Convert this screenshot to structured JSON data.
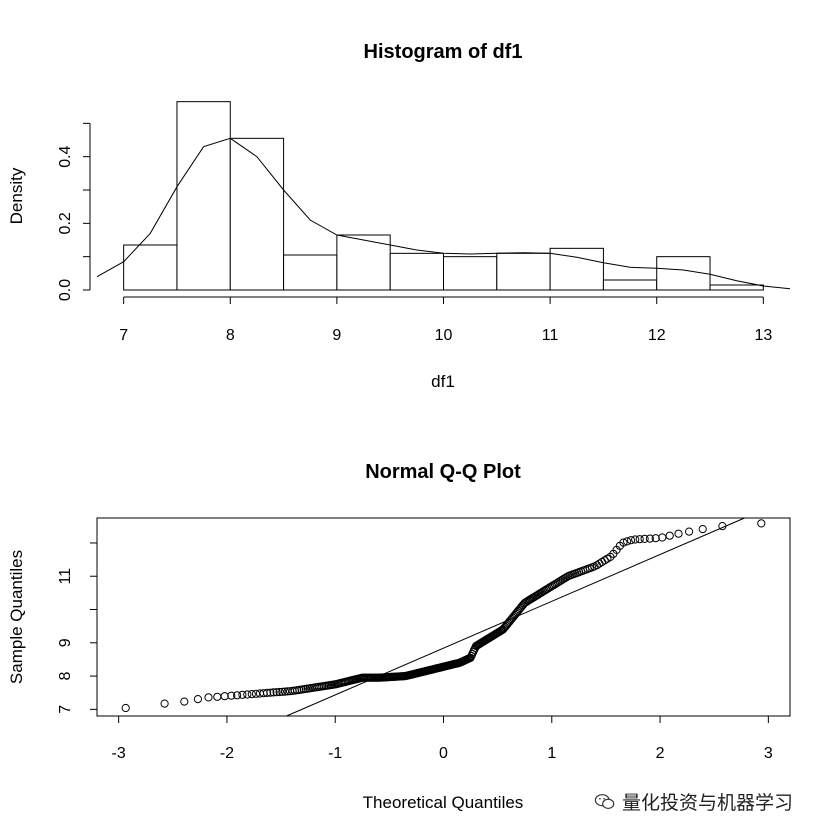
{
  "watermark": {
    "text": "量化投资与机器学习",
    "icon": "wechat-icon"
  },
  "chart_data": [
    {
      "type": "histogram",
      "title": "Histogram of df1",
      "xlabel": "df1",
      "ylabel": "Density",
      "x_ticks": [
        "7",
        "8",
        "9",
        "10",
        "11",
        "12",
        "13"
      ],
      "y_ticks": [
        "0.0",
        "0.2",
        "0.4"
      ],
      "xlim": [
        6.75,
        13.25
      ],
      "ylim": [
        0,
        0.57
      ],
      "bins": [
        {
          "x0": 7.0,
          "x1": 7.5,
          "density": 0.135
        },
        {
          "x0": 7.5,
          "x1": 8.0,
          "density": 0.565
        },
        {
          "x0": 8.0,
          "x1": 8.5,
          "density": 0.455
        },
        {
          "x0": 8.5,
          "x1": 9.0,
          "density": 0.105
        },
        {
          "x0": 9.0,
          "x1": 9.5,
          "density": 0.165
        },
        {
          "x0": 9.5,
          "x1": 10.0,
          "density": 0.11
        },
        {
          "x0": 10.0,
          "x1": 10.5,
          "density": 0.1
        },
        {
          "x0": 10.5,
          "x1": 11.0,
          "density": 0.11
        },
        {
          "x0": 11.0,
          "x1": 11.5,
          "density": 0.125
        },
        {
          "x0": 11.5,
          "x1": 12.0,
          "density": 0.03
        },
        {
          "x0": 12.0,
          "x1": 12.5,
          "density": 0.1
        },
        {
          "x0": 12.5,
          "x1": 13.0,
          "density": 0.015
        }
      ],
      "density_curve": {
        "x": [
          6.75,
          7.0,
          7.25,
          7.5,
          7.75,
          8.0,
          8.25,
          8.5,
          8.75,
          9.0,
          9.25,
          9.5,
          9.75,
          10.0,
          10.25,
          10.5,
          10.75,
          11.0,
          11.25,
          11.5,
          11.75,
          12.0,
          12.25,
          12.5,
          12.75,
          13.0,
          13.25
        ],
        "y": [
          0.04,
          0.085,
          0.17,
          0.31,
          0.43,
          0.455,
          0.4,
          0.3,
          0.21,
          0.165,
          0.15,
          0.135,
          0.12,
          0.11,
          0.108,
          0.11,
          0.112,
          0.11,
          0.098,
          0.082,
          0.068,
          0.065,
          0.06,
          0.047,
          0.028,
          0.012,
          0.004
        ]
      }
    },
    {
      "type": "scatter",
      "title": "Normal Q-Q Plot",
      "xlabel": "Theoretical Quantiles",
      "ylabel": "Sample Quantiles",
      "x_ticks": [
        "-3",
        "-2",
        "-1",
        "0",
        "1",
        "2",
        "3"
      ],
      "y_ticks": [
        "7",
        "8",
        "9",
        "11"
      ],
      "xlim": [
        -3.2,
        3.2
      ],
      "ylim": [
        6.8,
        12.75
      ],
      "n_points": 300,
      "points_curve": {
        "x": [
          -3.03,
          -2.67,
          -2.45,
          -2.2,
          -1.8,
          -1.4,
          -1.0,
          -0.75,
          -0.6,
          -0.35,
          -0.1,
          0.15,
          0.25,
          0.3,
          0.4,
          0.55,
          0.75,
          0.95,
          1.15,
          1.4,
          1.55,
          1.65,
          1.75,
          2.0,
          2.2,
          2.45,
          2.67,
          3.03
        ],
        "y": [
          7.0,
          7.15,
          7.2,
          7.35,
          7.45,
          7.55,
          7.75,
          7.95,
          7.95,
          8.0,
          8.2,
          8.4,
          8.55,
          8.9,
          9.1,
          9.4,
          10.2,
          10.6,
          11.0,
          11.3,
          11.6,
          12.0,
          12.1,
          12.15,
          12.3,
          12.45,
          12.55,
          12.6
        ]
      },
      "qq_line": {
        "x": [
          -1.45,
          2.78
        ],
        "y": [
          6.8,
          12.75
        ]
      }
    }
  ]
}
